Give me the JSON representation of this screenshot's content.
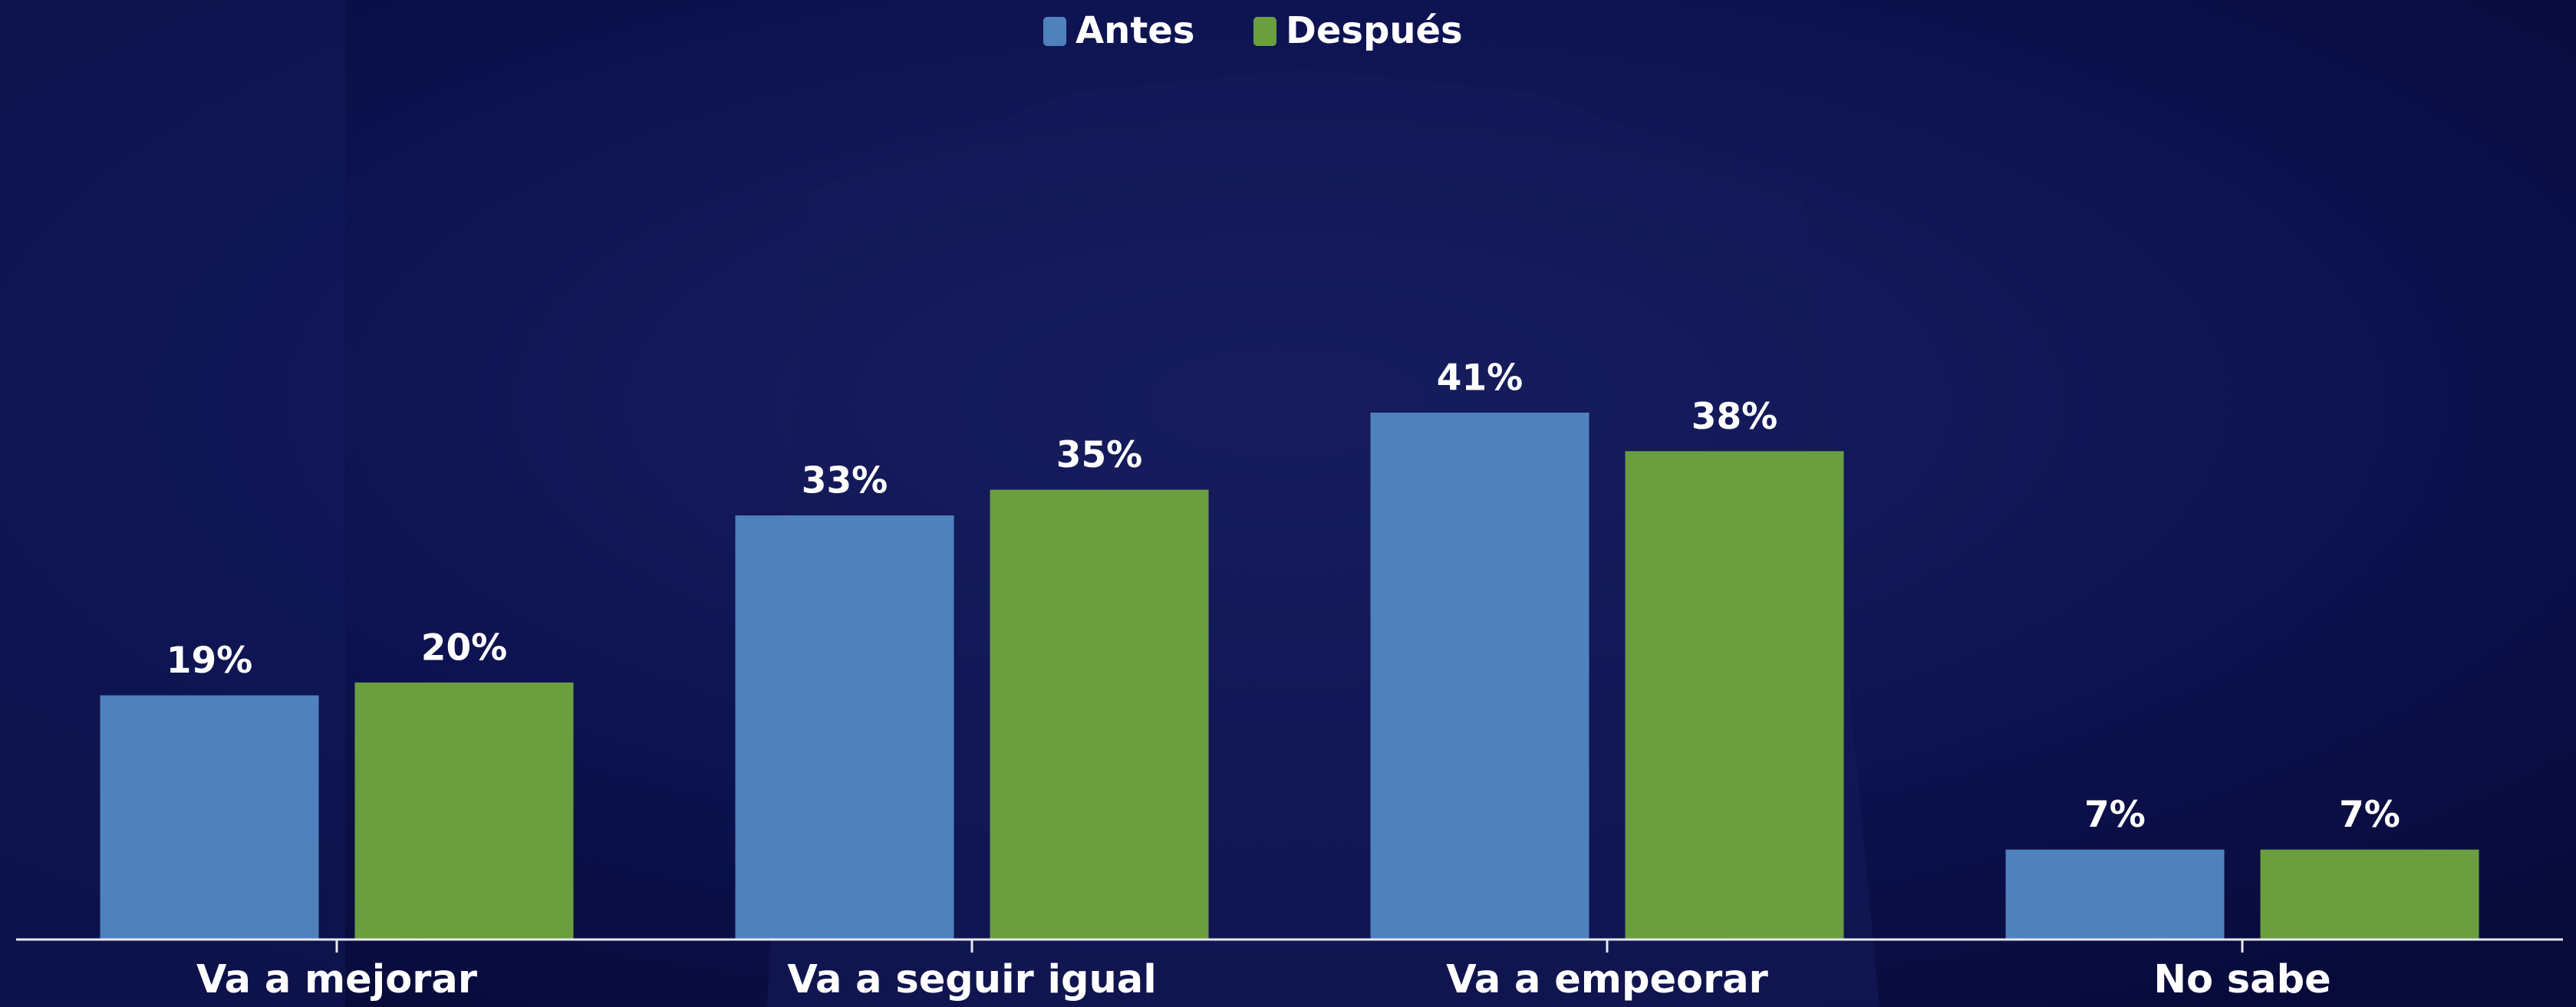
{
  "chart_data": {
    "type": "bar",
    "categories": [
      "Va a mejorar",
      "Va a seguir igual",
      "Va a empeorar",
      "No sabe"
    ],
    "series": [
      {
        "name": "Antes",
        "color": "#4f81bd",
        "values": [
          19,
          33,
          41,
          7
        ],
        "value_labels": [
          "19%",
          "33%",
          "41%",
          "7%"
        ]
      },
      {
        "name": "Después",
        "color": "#6a9e3f",
        "values": [
          20,
          35,
          38,
          7
        ],
        "value_labels": [
          "20%",
          "35%",
          "38%",
          "7%"
        ]
      }
    ],
    "legend": "top"
  }
}
